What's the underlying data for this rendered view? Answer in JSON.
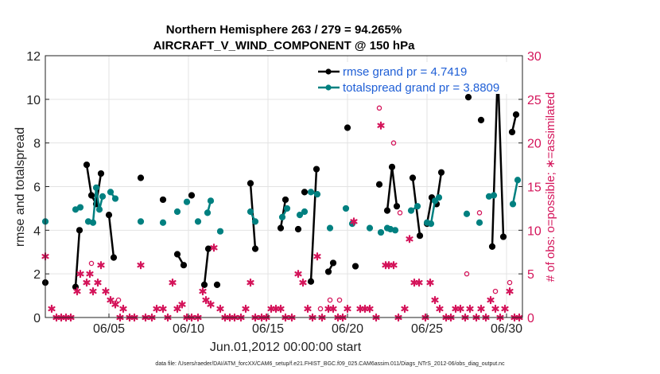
{
  "chart_data": {
    "type": "line",
    "title_line1": "Northern Hemisphere 263 / 279 = 94.265%",
    "title_line2": "AIRCRAFT_V_WIND_COMPONENT @ 150 hPa",
    "xlabel": "Jun.01,2012 00:00:00 start",
    "ylabel_left": "rmse and totalspread",
    "ylabel_right": "# of obs: o=possible; ∗=assimilated",
    "footer": "data file: /Users/raeder/DAI/ATM_forcXX/CAM6_setup/f.e21.FHIST_BGC.f09_025.CAM6assim.011/Diags_NTrS_2012-06/obs_diag_output.nc",
    "xlim": [
      1,
      31
    ],
    "ylim_left": [
      0,
      12
    ],
    "ylim_right": [
      0,
      30
    ],
    "x_ticks": [
      5,
      10,
      15,
      20,
      25,
      30
    ],
    "x_tick_labels": [
      "06/05",
      "06/10",
      "06/15",
      "06/20",
      "06/25",
      "06/30"
    ],
    "y_ticks_left": [
      "0",
      "2",
      "4",
      "6",
      "8",
      "10",
      "12"
    ],
    "y_ticks_right": [
      "0",
      "5",
      "10",
      "15",
      "20",
      "25",
      "30"
    ],
    "colors": {
      "rmse": "#000000",
      "spread": "#008080",
      "obs": "#d4145a",
      "legend_text": "#1f5fd6"
    },
    "legend": [
      {
        "name": "rmse grand pr = 4.7419"
      },
      {
        "name": "totalspread grand pr = 3.8809"
      }
    ],
    "series": [
      {
        "name": "rmse",
        "segments": [
          [
            [
              1.0,
              1.6
            ]
          ],
          [
            [
              2.9,
              1.4
            ],
            [
              3.15,
              4.0
            ]
          ],
          [
            [
              3.6,
              7.0
            ],
            [
              3.9,
              5.6
            ],
            [
              4.2,
              5.2
            ],
            [
              4.5,
              6.6
            ]
          ],
          [
            [
              5.0,
              4.7
            ],
            [
              5.3,
              2.75
            ]
          ],
          [
            [
              7.0,
              6.4
            ]
          ],
          [
            [
              8.4,
              5.4
            ]
          ],
          [
            [
              9.3,
              2.9
            ],
            [
              9.7,
              2.4
            ]
          ],
          [
            [
              10.2,
              5.6
            ]
          ],
          [
            [
              11.0,
              1.5
            ],
            [
              11.25,
              3.15
            ]
          ],
          [
            [
              11.8,
              1.5
            ]
          ],
          [
            [
              13.9,
              6.15
            ],
            [
              14.2,
              3.15
            ]
          ],
          [
            [
              15.8,
              4.1
            ],
            [
              16.1,
              5.4
            ]
          ],
          [
            [
              16.9,
              4.05
            ]
          ],
          [
            [
              17.3,
              5.75
            ]
          ],
          [
            [
              17.7,
              1.65
            ],
            [
              18.05,
              6.8
            ]
          ],
          [
            [
              18.8,
              2.1
            ],
            [
              19.1,
              2.5
            ]
          ],
          [
            [
              20.0,
              8.7
            ]
          ],
          [
            [
              20.5,
              2.35
            ]
          ],
          [
            [
              22.0,
              6.1
            ]
          ],
          [
            [
              22.5,
              4.9
            ],
            [
              22.8,
              6.9
            ],
            [
              23.1,
              5.1
            ]
          ],
          [
            [
              24.1,
              6.4
            ],
            [
              24.55,
              3.75
            ]
          ],
          [
            [
              25.0,
              4.3
            ],
            [
              25.3,
              5.5
            ],
            [
              25.6,
              5.2
            ],
            [
              25.9,
              6.65
            ]
          ],
          [
            [
              27.6,
              10.1
            ]
          ],
          [
            [
              28.4,
              9.05
            ]
          ],
          [
            [
              29.1,
              3.25
            ],
            [
              29.45,
              11.4
            ],
            [
              29.8,
              3.7
            ]
          ],
          [
            [
              30.35,
              8.5
            ],
            [
              30.6,
              9.3
            ]
          ]
        ]
      },
      {
        "name": "totalspread",
        "segments": [
          [
            [
              1.0,
              4.4
            ]
          ],
          [
            [
              2.9,
              4.95
            ],
            [
              3.2,
              5.05
            ]
          ],
          [
            [
              3.7,
              4.4
            ],
            [
              4.0,
              4.35
            ],
            [
              4.2,
              5.95
            ],
            [
              4.4,
              4.95
            ],
            [
              4.6,
              5.55
            ]
          ],
          [
            [
              5.1,
              5.75
            ],
            [
              5.4,
              5.45
            ]
          ],
          [
            [
              7.0,
              4.4
            ]
          ],
          [
            [
              8.4,
              4.35
            ]
          ],
          [
            [
              9.3,
              4.85
            ]
          ],
          [
            [
              9.9,
              5.3
            ]
          ],
          [
            [
              10.6,
              4.4
            ]
          ],
          [
            [
              11.2,
              4.8
            ],
            [
              11.4,
              5.35
            ]
          ],
          [
            [
              12.0,
              3.95
            ]
          ],
          [
            [
              13.9,
              4.85
            ],
            [
              14.2,
              4.4
            ]
          ],
          [
            [
              15.9,
              4.6
            ],
            [
              16.2,
              5.0
            ]
          ],
          [
            [
              17.0,
              4.7
            ],
            [
              17.3,
              4.85
            ]
          ],
          [
            [
              17.7,
              5.75
            ],
            [
              18.1,
              5.65
            ]
          ],
          [
            [
              18.9,
              4.1
            ]
          ],
          [
            [
              19.9,
              5.0
            ]
          ],
          [
            [
              20.3,
              4.3
            ]
          ],
          [
            [
              21.4,
              4.1
            ]
          ],
          [
            [
              22.1,
              3.9
            ]
          ],
          [
            [
              22.5,
              4.1
            ],
            [
              22.7,
              4.05
            ],
            [
              23.0,
              4.0
            ]
          ],
          [
            [
              24.0,
              4.9
            ],
            [
              24.4,
              5.1
            ]
          ],
          [
            [
              25.0,
              4.35
            ],
            [
              25.25,
              4.3
            ],
            [
              25.5,
              5.35
            ],
            [
              25.75,
              5.5
            ]
          ],
          [
            [
              27.5,
              4.75
            ]
          ],
          [
            [
              28.3,
              4.35
            ]
          ],
          [
            [
              28.9,
              5.55
            ],
            [
              29.2,
              5.6
            ]
          ],
          [
            [
              30.4,
              5.2
            ],
            [
              30.7,
              6.3
            ]
          ]
        ]
      }
    ],
    "obs_assimilated": [
      [
        1.0,
        7
      ],
      [
        1.4,
        1
      ],
      [
        1.7,
        0
      ],
      [
        2.0,
        0
      ],
      [
        2.3,
        0
      ],
      [
        2.6,
        0
      ],
      [
        3.0,
        3
      ],
      [
        3.2,
        5
      ],
      [
        3.6,
        4
      ],
      [
        3.8,
        5
      ],
      [
        4.0,
        3
      ],
      [
        4.3,
        4
      ],
      [
        4.5,
        6
      ],
      [
        4.8,
        3
      ],
      [
        5.1,
        2
      ],
      [
        5.4,
        1.5
      ],
      [
        5.7,
        0
      ],
      [
        5.9,
        1
      ],
      [
        6.3,
        0
      ],
      [
        6.6,
        0
      ],
      [
        7.0,
        6
      ],
      [
        7.3,
        0
      ],
      [
        7.7,
        0
      ],
      [
        8.0,
        1
      ],
      [
        8.4,
        1
      ],
      [
        8.7,
        0
      ],
      [
        9.0,
        4
      ],
      [
        9.3,
        1
      ],
      [
        9.6,
        1.5
      ],
      [
        9.9,
        0
      ],
      [
        10.2,
        0
      ],
      [
        10.6,
        0
      ],
      [
        10.9,
        3
      ],
      [
        11.1,
        2
      ],
      [
        11.4,
        1.5
      ],
      [
        11.6,
        8
      ],
      [
        12.0,
        1
      ],
      [
        12.3,
        0
      ],
      [
        12.6,
        0
      ],
      [
        12.9,
        0
      ],
      [
        13.3,
        0
      ],
      [
        13.6,
        1
      ],
      [
        13.9,
        4
      ],
      [
        14.2,
        0
      ],
      [
        14.6,
        0
      ],
      [
        14.9,
        0
      ],
      [
        15.2,
        1
      ],
      [
        15.5,
        1
      ],
      [
        15.8,
        1
      ],
      [
        16.1,
        0
      ],
      [
        16.5,
        0
      ],
      [
        16.9,
        5
      ],
      [
        17.2,
        4
      ],
      [
        17.5,
        1
      ],
      [
        17.8,
        0
      ],
      [
        18.1,
        7
      ],
      [
        18.4,
        0
      ],
      [
        18.8,
        1
      ],
      [
        19.1,
        1
      ],
      [
        19.4,
        0
      ],
      [
        19.7,
        0
      ],
      [
        20.0,
        1
      ],
      [
        20.4,
        11
      ],
      [
        20.8,
        1
      ],
      [
        21.1,
        1
      ],
      [
        21.4,
        1
      ],
      [
        21.8,
        0
      ],
      [
        22.1,
        22
      ],
      [
        22.4,
        6
      ],
      [
        22.6,
        6
      ],
      [
        22.9,
        6
      ],
      [
        23.2,
        0
      ],
      [
        23.6,
        1
      ],
      [
        23.9,
        9
      ],
      [
        24.2,
        4
      ],
      [
        24.5,
        4
      ],
      [
        24.9,
        0
      ],
      [
        25.2,
        4
      ],
      [
        25.5,
        2
      ],
      [
        25.8,
        1
      ],
      [
        26.2,
        0
      ],
      [
        26.5,
        0
      ],
      [
        26.8,
        1
      ],
      [
        27.1,
        1
      ],
      [
        27.4,
        0
      ],
      [
        27.7,
        1
      ],
      [
        28.1,
        0
      ],
      [
        28.4,
        1
      ],
      [
        28.7,
        0
      ],
      [
        29.0,
        2
      ],
      [
        29.3,
        1
      ],
      [
        29.6,
        0
      ],
      [
        29.9,
        1
      ],
      [
        30.2,
        3
      ],
      [
        30.5,
        0
      ],
      [
        30.8,
        0
      ]
    ],
    "obs_possible": [
      [
        3.9,
        6.2
      ],
      [
        5.6,
        2
      ],
      [
        18.3,
        1
      ],
      [
        18.9,
        2
      ],
      [
        19.5,
        2
      ],
      [
        22.0,
        24
      ],
      [
        22.9,
        20
      ],
      [
        23.3,
        12
      ],
      [
        27.5,
        5
      ],
      [
        28.3,
        12
      ],
      [
        29.3,
        3
      ],
      [
        30.2,
        4
      ]
    ]
  }
}
